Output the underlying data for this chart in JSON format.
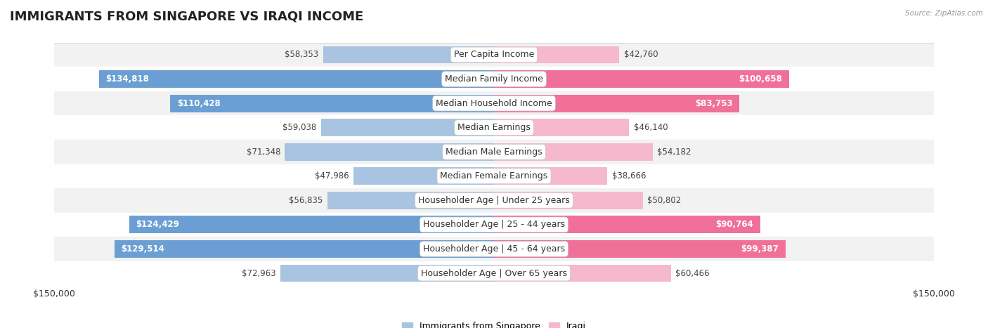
{
  "title": "IMMIGRANTS FROM SINGAPORE VS IRAQI INCOME",
  "source": "Source: ZipAtlas.com",
  "categories": [
    "Per Capita Income",
    "Median Family Income",
    "Median Household Income",
    "Median Earnings",
    "Median Male Earnings",
    "Median Female Earnings",
    "Householder Age | Under 25 years",
    "Householder Age | 25 - 44 years",
    "Householder Age | 45 - 64 years",
    "Householder Age | Over 65 years"
  ],
  "singapore_values": [
    58353,
    134818,
    110428,
    59038,
    71348,
    47986,
    56835,
    124429,
    129514,
    72963
  ],
  "iraqi_values": [
    42760,
    100658,
    83753,
    46140,
    54182,
    38666,
    50802,
    90764,
    99387,
    60466
  ],
  "singapore_labels": [
    "$58,353",
    "$134,818",
    "$110,428",
    "$59,038",
    "$71,348",
    "$47,986",
    "$56,835",
    "$124,429",
    "$129,514",
    "$72,963"
  ],
  "iraqi_labels": [
    "$42,760",
    "$100,658",
    "$83,753",
    "$46,140",
    "$54,182",
    "$38,666",
    "$50,802",
    "$90,764",
    "$99,387",
    "$60,466"
  ],
  "singapore_color_light": "#a8c4e0",
  "singapore_color_dark": "#6b9fd4",
  "iraqi_color_light": "#f5b8cc",
  "iraqi_color_dark": "#f07099",
  "max_value": 150000,
  "bar_height": 0.72,
  "row_bg_light": "#f2f2f2",
  "row_bg_white": "#ffffff",
  "legend_singapore": "Immigrants from Singapore",
  "legend_iraqi": "Iraqi",
  "xlabel_left": "$150,000",
  "xlabel_right": "$150,000",
  "title_fontsize": 13,
  "label_fontsize": 8.5,
  "category_fontsize": 9,
  "background_color": "#ffffff",
  "sg_large_threshold": 80000,
  "iq_large_threshold": 80000
}
